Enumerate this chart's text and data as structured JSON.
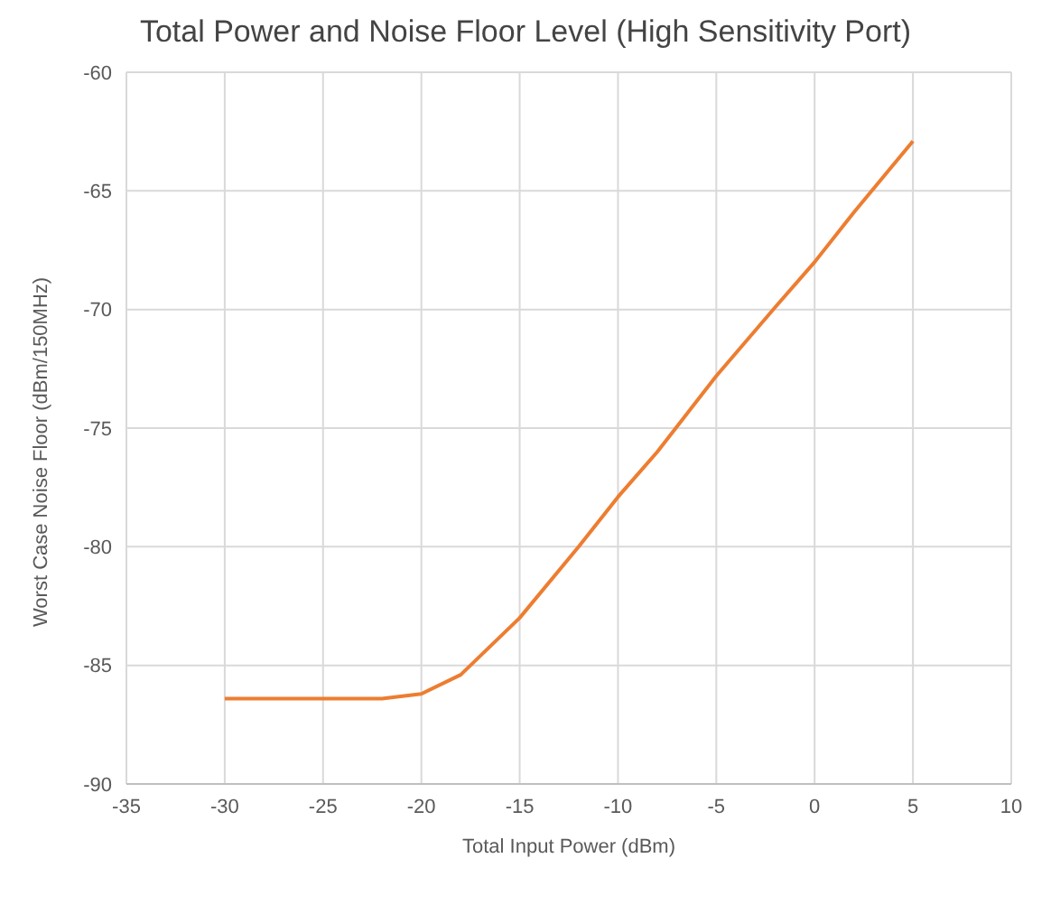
{
  "chart_data": {
    "type": "line",
    "title": "Total Power and Noise Floor Level (High Sensitivity Port)",
    "xlabel": "Total Input Power (dBm)",
    "ylabel": "Worst Case Noise Floor (dBm/150MHz)",
    "x": [
      -30,
      -25,
      -22,
      -20,
      -18,
      -15,
      -12,
      -10,
      -8,
      -5,
      -2,
      0,
      2,
      5
    ],
    "series": [
      {
        "color": "#ed7d31",
        "values": [
          -86.4,
          -86.4,
          -86.4,
          -86.2,
          -85.4,
          -83,
          -80,
          -77.9,
          -76,
          -72.8,
          -69.9,
          -68,
          -65.9,
          -62.9
        ]
      }
    ],
    "xlim": [
      -35,
      10
    ],
    "xticks": [
      -35,
      -30,
      -25,
      -20,
      -15,
      -10,
      -5,
      0,
      5,
      10
    ],
    "ylim": [
      -90,
      -60
    ],
    "yticks": [
      -90,
      -85,
      -80,
      -75,
      -70,
      -65,
      -60
    ],
    "grid": true,
    "legend": false,
    "marker": "none",
    "line_style": "solid"
  }
}
